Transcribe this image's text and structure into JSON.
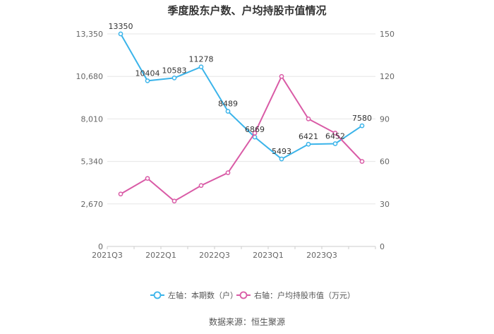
{
  "chart_data": {
    "type": "line",
    "title": "季度股东户数、户均持股市值情况",
    "categories": [
      "2021Q3",
      "2021Q4",
      "2022Q1",
      "2022Q2",
      "2022Q3",
      "2022Q4",
      "2023Q1",
      "2023Q2",
      "2023Q3",
      "2023Q4"
    ],
    "x_tick_labels": [
      "2021Q3",
      "2022Q1",
      "2022Q3",
      "2023Q1",
      "2023Q3"
    ],
    "left_axis": {
      "ylim": [
        0,
        13350
      ],
      "ticks": [
        "0",
        "2,670",
        "5,340",
        "8,010",
        "10,680",
        "13,350"
      ]
    },
    "right_axis": {
      "ylim": [
        0,
        150
      ],
      "ticks": [
        "0",
        "30",
        "60",
        "90",
        "120",
        "150"
      ]
    },
    "grid": true,
    "legend_position": "bottom",
    "series": [
      {
        "name": "左轴：本期数（户）",
        "axis": "left",
        "color": "#3bb4ea",
        "values": [
          13350,
          10404,
          10583,
          11278,
          8489,
          6869,
          5493,
          6421,
          6452,
          7580
        ],
        "labels": [
          "13350",
          "10404",
          "10583",
          "11278",
          "8489",
          "6869",
          "5493",
          "6421",
          "6452",
          "7580"
        ]
      },
      {
        "name": "右轴：户均持股市值（万元）",
        "axis": "right",
        "color": "#d95ba6",
        "values": [
          37,
          48,
          32,
          43,
          52,
          80,
          120,
          90,
          80,
          60
        ]
      }
    ]
  },
  "source": "数据来源：恒生聚源"
}
